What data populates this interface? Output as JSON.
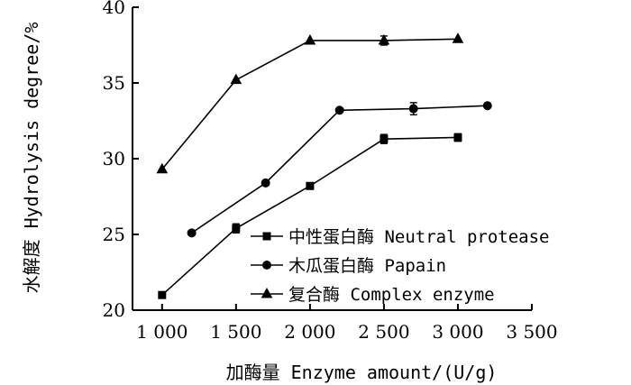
{
  "chart_data": {
    "type": "line",
    "xlabel": "加酶量 Enzyme amount/(U/g)",
    "ylabel": "水解度 Hydrolysis degree/%",
    "xlim": [
      800,
      3500
    ],
    "ylim": [
      20,
      40
    ],
    "x_ticks": [
      1000,
      1500,
      2000,
      2500,
      3000,
      3500
    ],
    "x_tick_labels": [
      "1 000",
      "1 500",
      "2 000",
      "2 500",
      "3 000",
      "3 500"
    ],
    "y_ticks": [
      20,
      25,
      30,
      35,
      40
    ],
    "y_tick_labels": [
      "20",
      "25",
      "30",
      "35",
      "40"
    ],
    "legend_position": "lower-right",
    "series": [
      {
        "name": "中性蛋白酶 Neutral protease",
        "marker": "square",
        "x": [
          1000,
          1500,
          2000,
          2500,
          3000
        ],
        "y": [
          21.0,
          25.4,
          28.2,
          31.3,
          31.4
        ],
        "err": [
          0,
          0.3,
          0,
          0.3,
          0.25
        ]
      },
      {
        "name": "木瓜蛋白酶 Papain",
        "marker": "circle",
        "x": [
          1200,
          1700,
          2200,
          2700,
          3200
        ],
        "y": [
          25.1,
          28.4,
          33.2,
          33.3,
          33.5
        ],
        "err": [
          0,
          0.15,
          0,
          0.4,
          0
        ]
      },
      {
        "name": "复合酶 Complex enzyme",
        "marker": "triangle",
        "x": [
          1000,
          1500,
          2000,
          2500,
          3000
        ],
        "y": [
          29.3,
          35.2,
          37.8,
          37.8,
          37.9
        ],
        "err": [
          0,
          0,
          0,
          0.3,
          0
        ]
      }
    ]
  }
}
